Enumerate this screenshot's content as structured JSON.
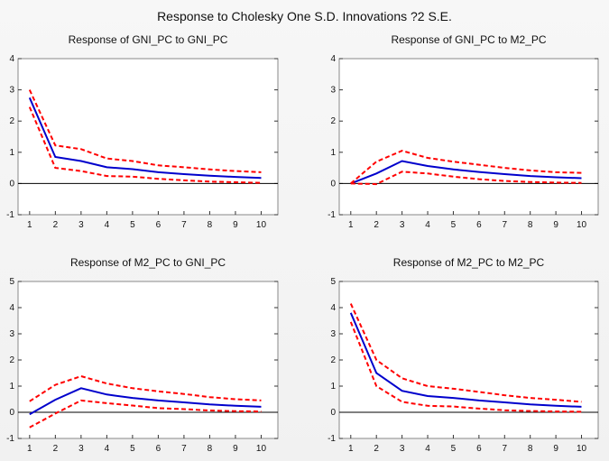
{
  "title": "Response to Cholesky One S.D. Innovations ?2 S.E.",
  "colors": {
    "response": "#0000cc",
    "band": "#ff0000",
    "zero": "#000000",
    "plot_bg": "#ffffff",
    "frame": "#888888"
  },
  "chart_data": [
    {
      "type": "line",
      "title": "Response of GNI_PC to GNI_PC",
      "x": [
        1,
        2,
        3,
        4,
        5,
        6,
        7,
        8,
        9,
        10
      ],
      "ylim": [
        -1,
        4
      ],
      "yticks": [
        -1,
        0,
        1,
        2,
        3,
        4
      ],
      "series": [
        {
          "name": "response",
          "values": [
            2.75,
            0.85,
            0.72,
            0.52,
            0.46,
            0.36,
            0.3,
            0.25,
            0.21,
            0.18
          ]
        },
        {
          "name": "upper",
          "values": [
            3.0,
            1.22,
            1.1,
            0.8,
            0.72,
            0.58,
            0.52,
            0.45,
            0.4,
            0.36
          ]
        },
        {
          "name": "lower",
          "values": [
            2.45,
            0.5,
            0.4,
            0.24,
            0.22,
            0.15,
            0.1,
            0.06,
            0.04,
            0.02
          ]
        }
      ]
    },
    {
      "type": "line",
      "title": "Response of GNI_PC to M2_PC",
      "x": [
        1,
        2,
        3,
        4,
        5,
        6,
        7,
        8,
        9,
        10
      ],
      "ylim": [
        -1,
        4
      ],
      "yticks": [
        -1,
        0,
        1,
        2,
        3,
        4
      ],
      "series": [
        {
          "name": "response",
          "values": [
            0.0,
            0.32,
            0.72,
            0.56,
            0.45,
            0.37,
            0.3,
            0.24,
            0.2,
            0.17
          ]
        },
        {
          "name": "upper",
          "values": [
            0.0,
            0.7,
            1.05,
            0.82,
            0.7,
            0.6,
            0.5,
            0.42,
            0.36,
            0.34
          ]
        },
        {
          "name": "lower",
          "values": [
            0.0,
            -0.02,
            0.38,
            0.32,
            0.22,
            0.14,
            0.08,
            0.05,
            0.03,
            0.02
          ]
        }
      ]
    },
    {
      "type": "line",
      "title": "Response of M2_PC to GNI_PC",
      "x": [
        1,
        2,
        3,
        4,
        5,
        6,
        7,
        8,
        9,
        10
      ],
      "ylim": [
        -1,
        5
      ],
      "yticks": [
        -1,
        0,
        1,
        2,
        3,
        4,
        5
      ],
      "series": [
        {
          "name": "response",
          "values": [
            -0.08,
            0.48,
            0.92,
            0.68,
            0.55,
            0.45,
            0.38,
            0.3,
            0.25,
            0.21
          ]
        },
        {
          "name": "upper",
          "values": [
            0.42,
            1.05,
            1.38,
            1.1,
            0.92,
            0.8,
            0.7,
            0.58,
            0.5,
            0.45
          ]
        },
        {
          "name": "lower",
          "values": [
            -0.58,
            -0.05,
            0.45,
            0.35,
            0.26,
            0.16,
            0.12,
            0.07,
            0.04,
            0.03
          ]
        }
      ]
    },
    {
      "type": "line",
      "title": "Response of M2_PC to M2_PC",
      "x": [
        1,
        2,
        3,
        4,
        5,
        6,
        7,
        8,
        9,
        10
      ],
      "ylim": [
        -1,
        5
      ],
      "yticks": [
        -1,
        0,
        1,
        2,
        3,
        4,
        5
      ],
      "series": [
        {
          "name": "response",
          "values": [
            3.8,
            1.5,
            0.82,
            0.62,
            0.55,
            0.45,
            0.38,
            0.3,
            0.25,
            0.21
          ]
        },
        {
          "name": "upper",
          "values": [
            4.15,
            2.0,
            1.3,
            1.0,
            0.9,
            0.78,
            0.65,
            0.55,
            0.48,
            0.4
          ]
        },
        {
          "name": "lower",
          "values": [
            3.45,
            1.0,
            0.4,
            0.25,
            0.22,
            0.14,
            0.08,
            0.05,
            0.03,
            0.02
          ]
        }
      ]
    }
  ]
}
